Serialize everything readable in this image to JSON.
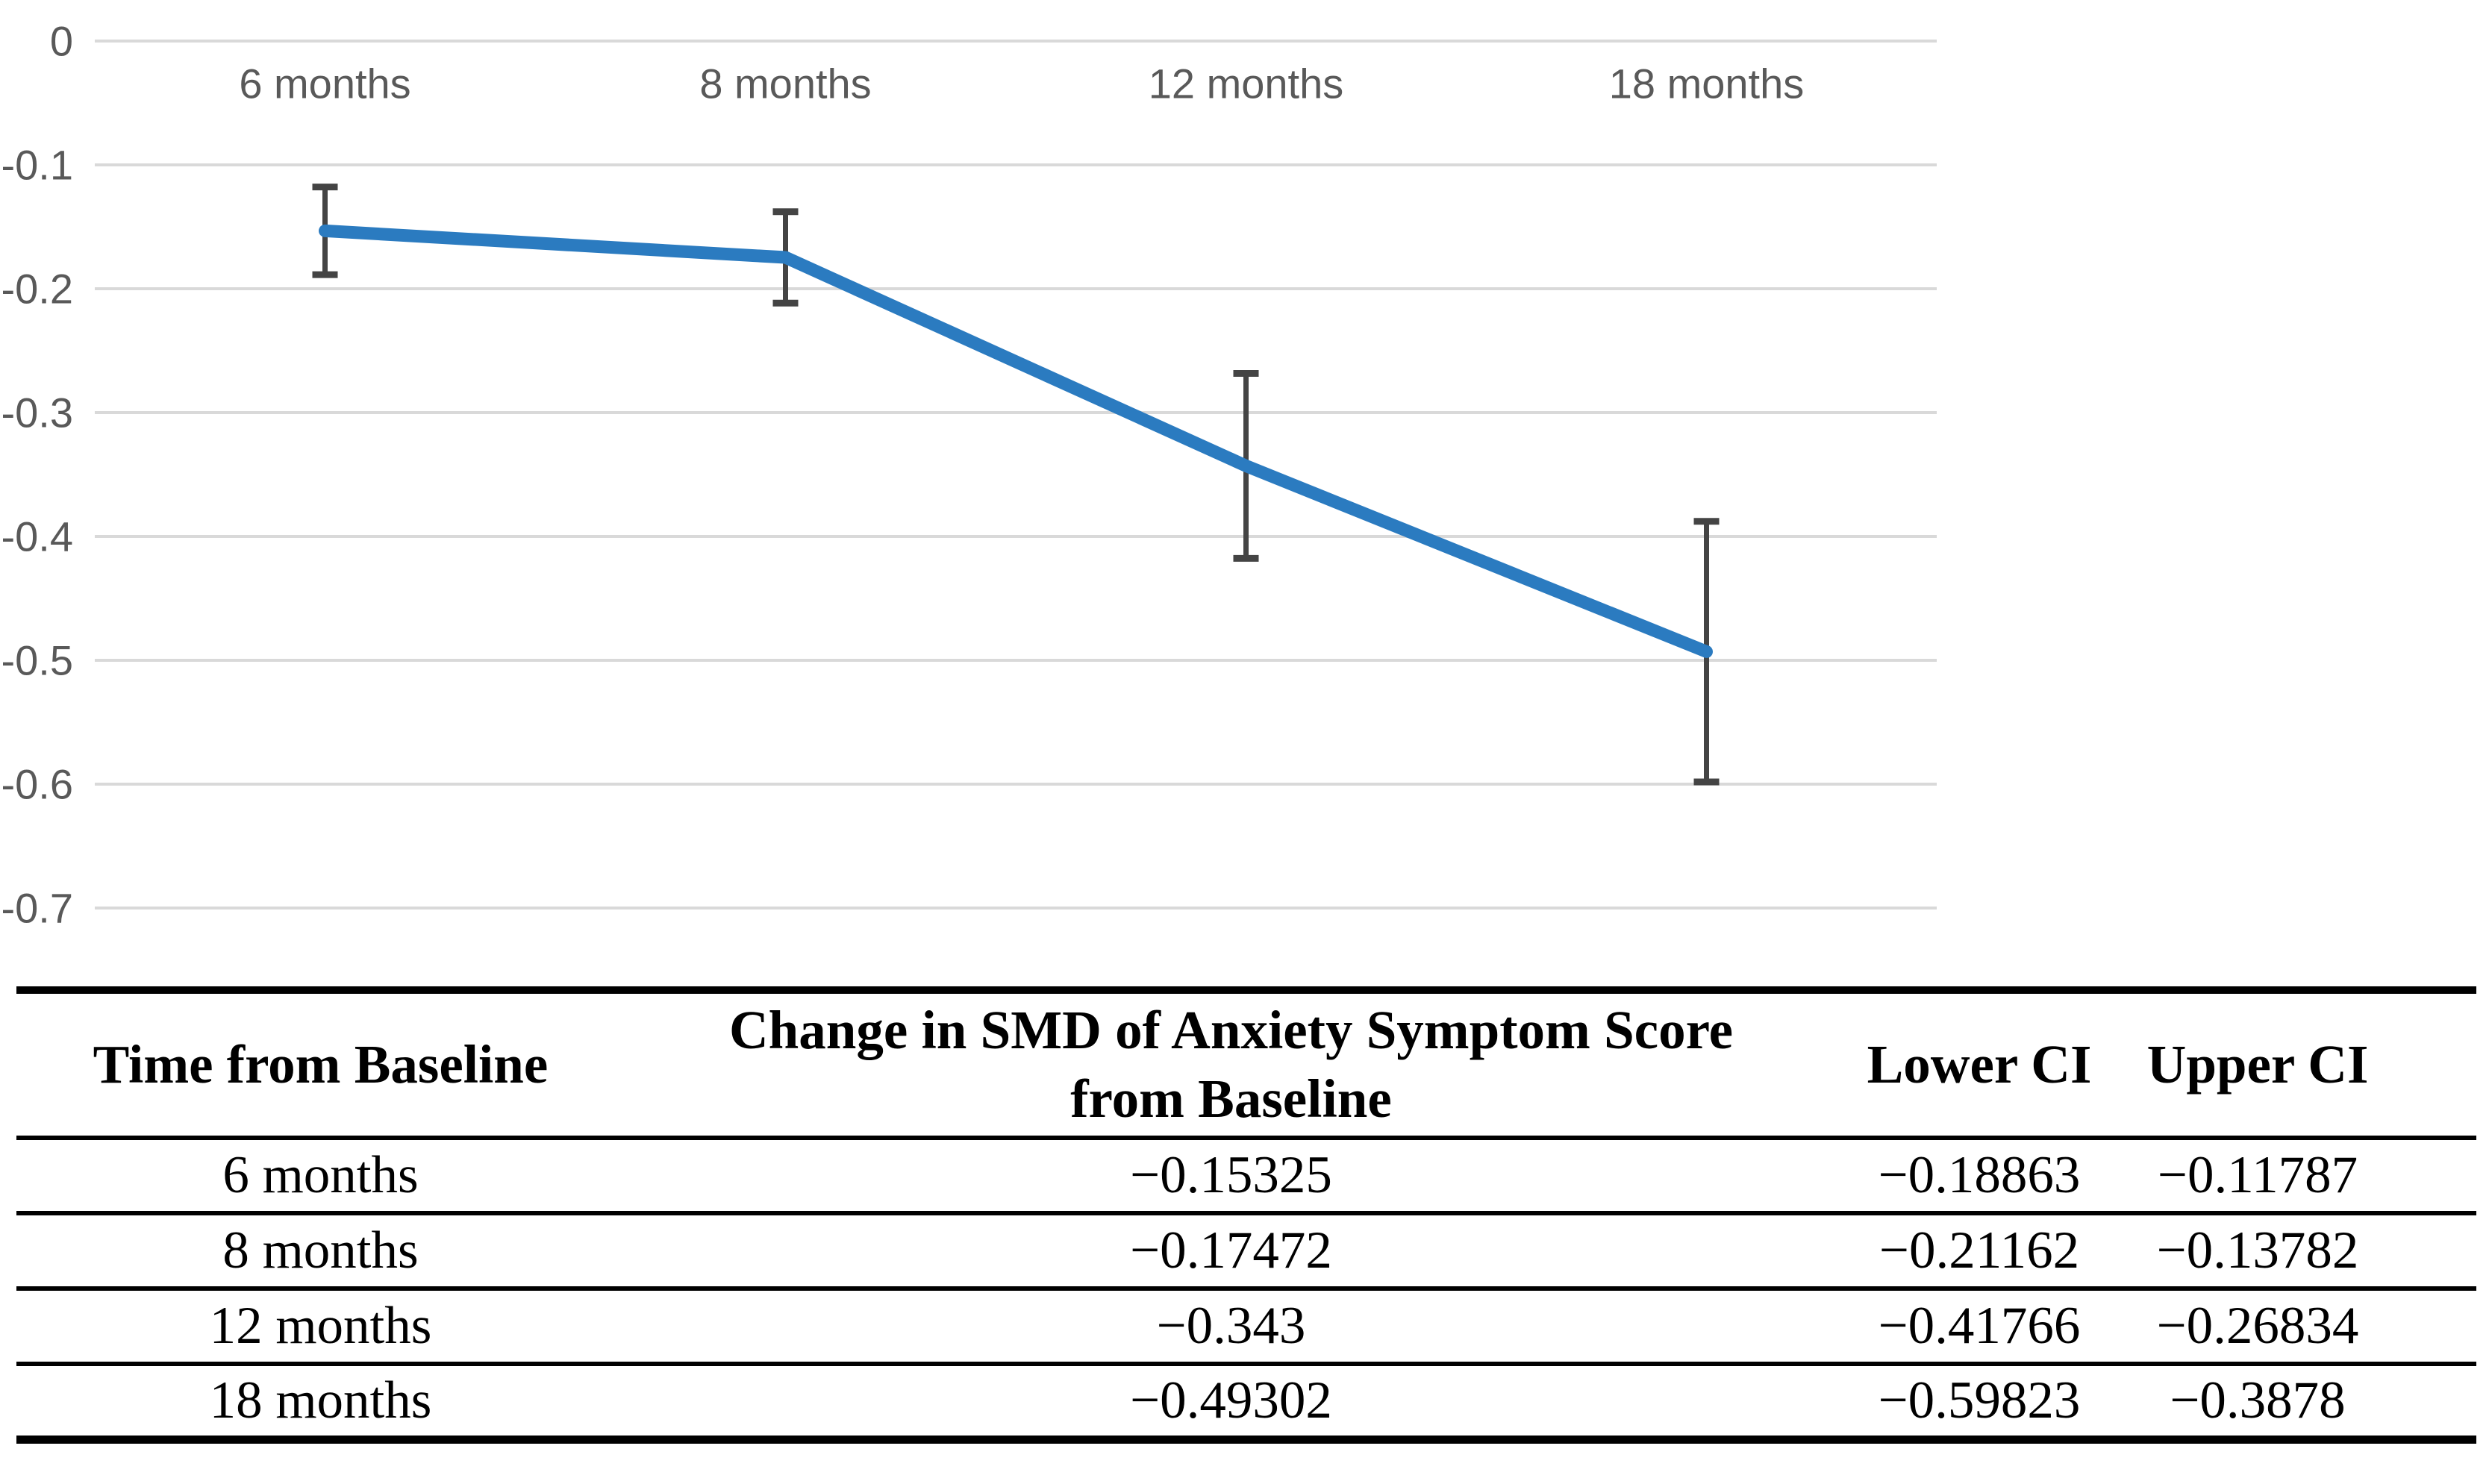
{
  "colors": {
    "line_blue": "#2B7BC0",
    "errorbar_gray": "#444444",
    "gridline_gray": "#D9D9D9",
    "axis_text_gray": "#595959",
    "table_rule_black": "#000000"
  },
  "chart_data": {
    "type": "line",
    "title": "",
    "xlabel": "",
    "ylabel": "",
    "categories": [
      "6 months",
      "8 months",
      "12 months",
      "18 months"
    ],
    "series": [
      {
        "name": "Change in SMD of Anxiety Symptom Score from Baseline",
        "values": [
          -0.15325,
          -0.17472,
          -0.343,
          -0.49302
        ],
        "lower_ci": [
          -0.18863,
          -0.21162,
          -0.41766,
          -0.59823
        ],
        "upper_ci": [
          -0.11787,
          -0.13782,
          -0.26834,
          -0.3878
        ]
      }
    ],
    "ylim": [
      -0.7,
      0
    ],
    "yticks": [
      0,
      -0.1,
      -0.2,
      -0.3,
      -0.4,
      -0.5,
      -0.6,
      -0.7
    ],
    "ytick_labels": [
      "0",
      "-0.1",
      "-0.2",
      "-0.3",
      "-0.4",
      "-0.5",
      "-0.6",
      "-0.7"
    ],
    "grid": true,
    "legend": "none",
    "error_bars": true,
    "category_labels_position": "top-below-zero-axis"
  },
  "table": {
    "headers": {
      "col1": "Time from Baseline",
      "col2_line1": "Change in SMD of Anxiety Symptom Score",
      "col2_line2": "from Baseline",
      "col3": "Lower CI",
      "col4": "Upper CI"
    },
    "rows": [
      {
        "time": "6 months",
        "change": "−0.15325",
        "lower": "−0.18863",
        "upper": "−0.11787"
      },
      {
        "time": "8 months",
        "change": "−0.17472",
        "lower": "−0.21162",
        "upper": "−0.13782"
      },
      {
        "time": "12 months",
        "change": "−0.343",
        "lower": "−0.41766",
        "upper": "−0.26834"
      },
      {
        "time": "18 months",
        "change": "−0.49302",
        "lower": "−0.59823",
        "upper": "−0.3878"
      }
    ]
  }
}
